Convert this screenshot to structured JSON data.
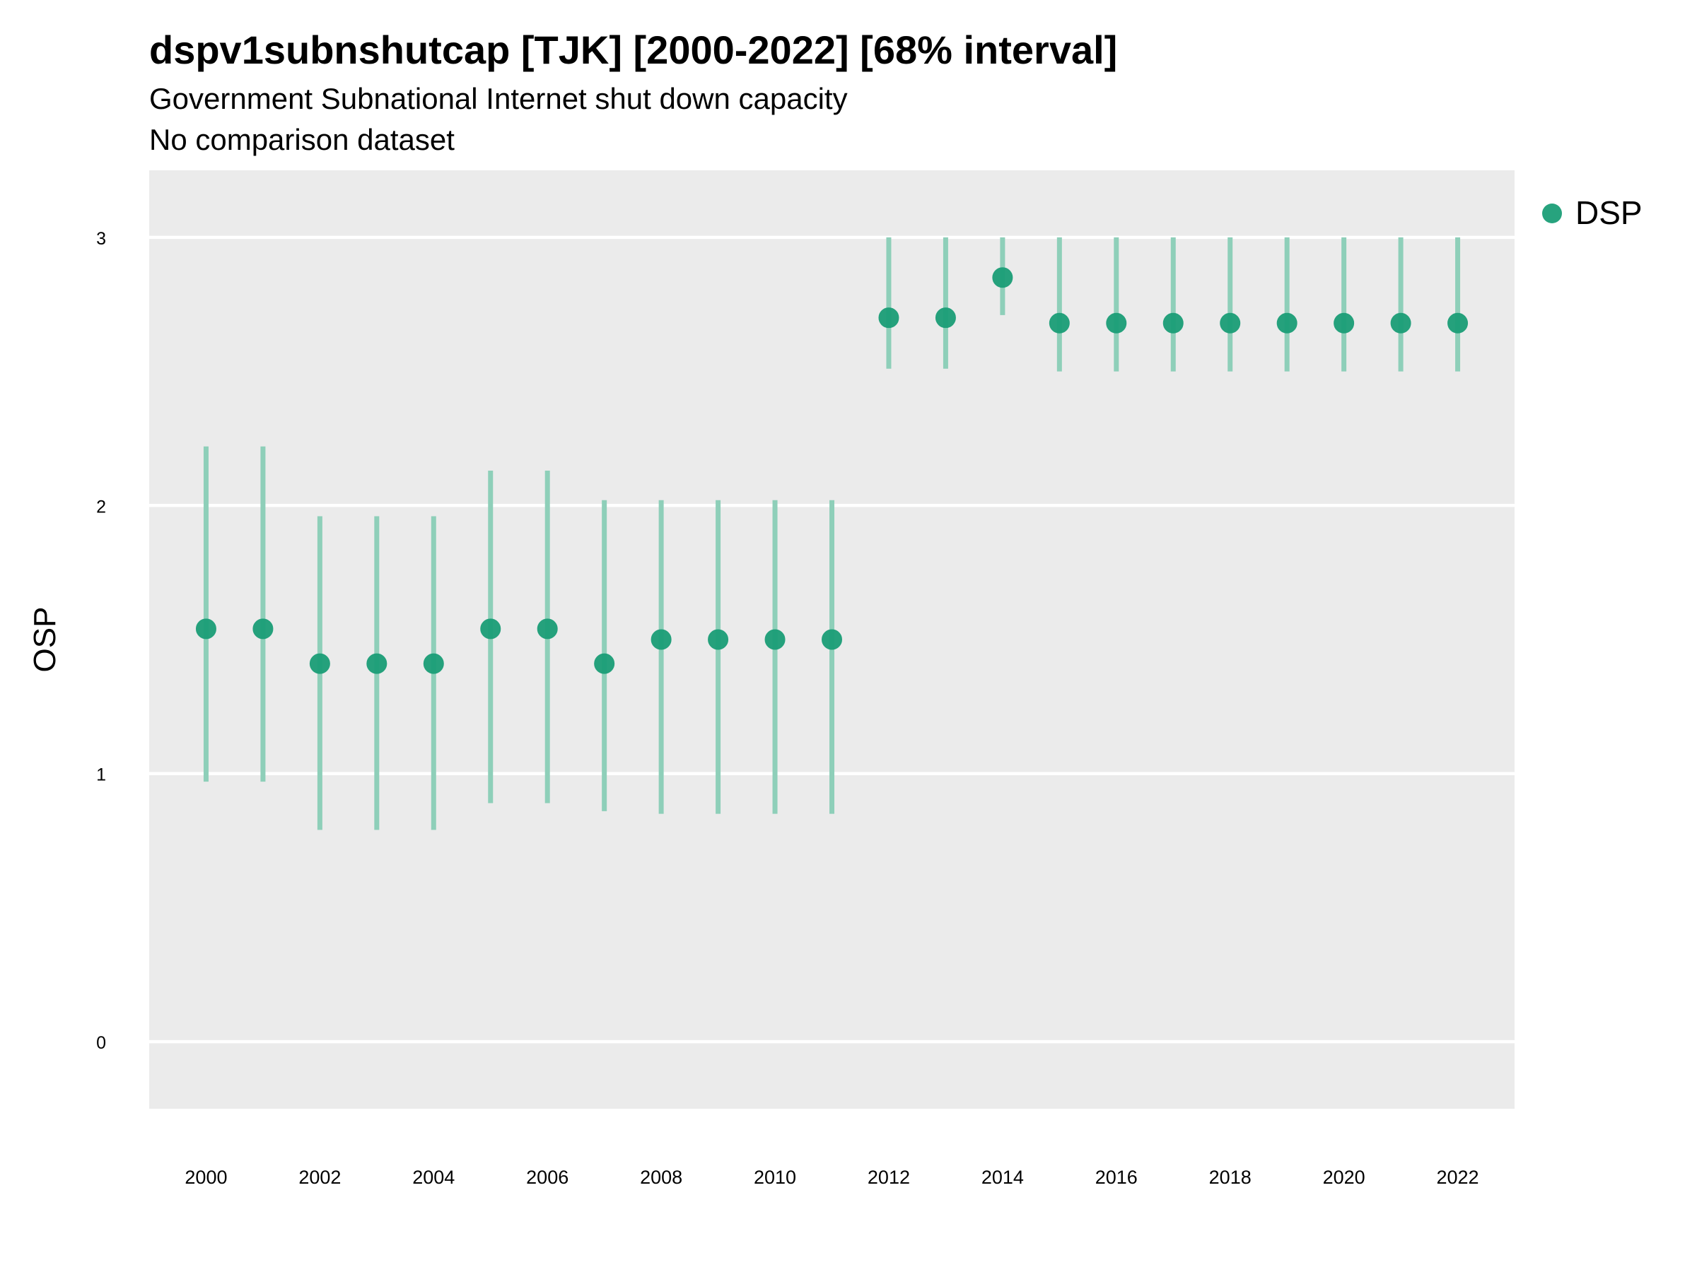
{
  "title": "dspv1subnshutcap [TJK] [2000-2022] [68% interval]",
  "subtitle": "Government Subnational Internet shut down capacity",
  "subtitle2": "No comparison dataset",
  "colors": {
    "panel": "#ebebeb",
    "grid": "#ffffff",
    "point": "#1b9e77",
    "errorbar": "#8ecfb9"
  },
  "chart_data": {
    "type": "scatter",
    "title": "dspv1subnshutcap [TJK] [2000-2022] [68% interval]",
    "ylabel": "OSP",
    "xlabel": "",
    "x_ticks": [
      2000,
      2002,
      2004,
      2006,
      2008,
      2010,
      2012,
      2014,
      2016,
      2018,
      2020,
      2022
    ],
    "y_ticks": [
      0,
      1,
      2,
      3
    ],
    "xlim": [
      1999,
      2023
    ],
    "ylim": [
      -0.25,
      3.25
    ],
    "grid": true,
    "legend": {
      "position": "right",
      "entries": [
        "DSP"
      ]
    },
    "series": [
      {
        "name": "DSP",
        "x": [
          2000,
          2001,
          2002,
          2003,
          2004,
          2005,
          2006,
          2007,
          2008,
          2009,
          2010,
          2011,
          2012,
          2013,
          2014,
          2015,
          2016,
          2017,
          2018,
          2019,
          2020,
          2021,
          2022
        ],
        "y": [
          1.54,
          1.54,
          1.41,
          1.41,
          1.41,
          1.54,
          1.54,
          1.41,
          1.5,
          1.5,
          1.5,
          1.5,
          2.7,
          2.7,
          2.85,
          2.68,
          2.68,
          2.68,
          2.68,
          2.68,
          2.68,
          2.68,
          2.68
        ],
        "lower": [
          0.97,
          0.97,
          0.79,
          0.79,
          0.79,
          0.89,
          0.89,
          0.86,
          0.85,
          0.85,
          0.85,
          0.85,
          2.51,
          2.51,
          2.71,
          2.5,
          2.5,
          2.5,
          2.5,
          2.5,
          2.5,
          2.5,
          2.5
        ],
        "upper": [
          2.22,
          2.22,
          1.96,
          1.96,
          1.96,
          2.13,
          2.13,
          2.02,
          2.02,
          2.02,
          2.02,
          2.02,
          3.0,
          3.0,
          3.0,
          3.0,
          3.0,
          3.0,
          3.0,
          3.0,
          3.0,
          3.0,
          3.0
        ]
      }
    ]
  }
}
